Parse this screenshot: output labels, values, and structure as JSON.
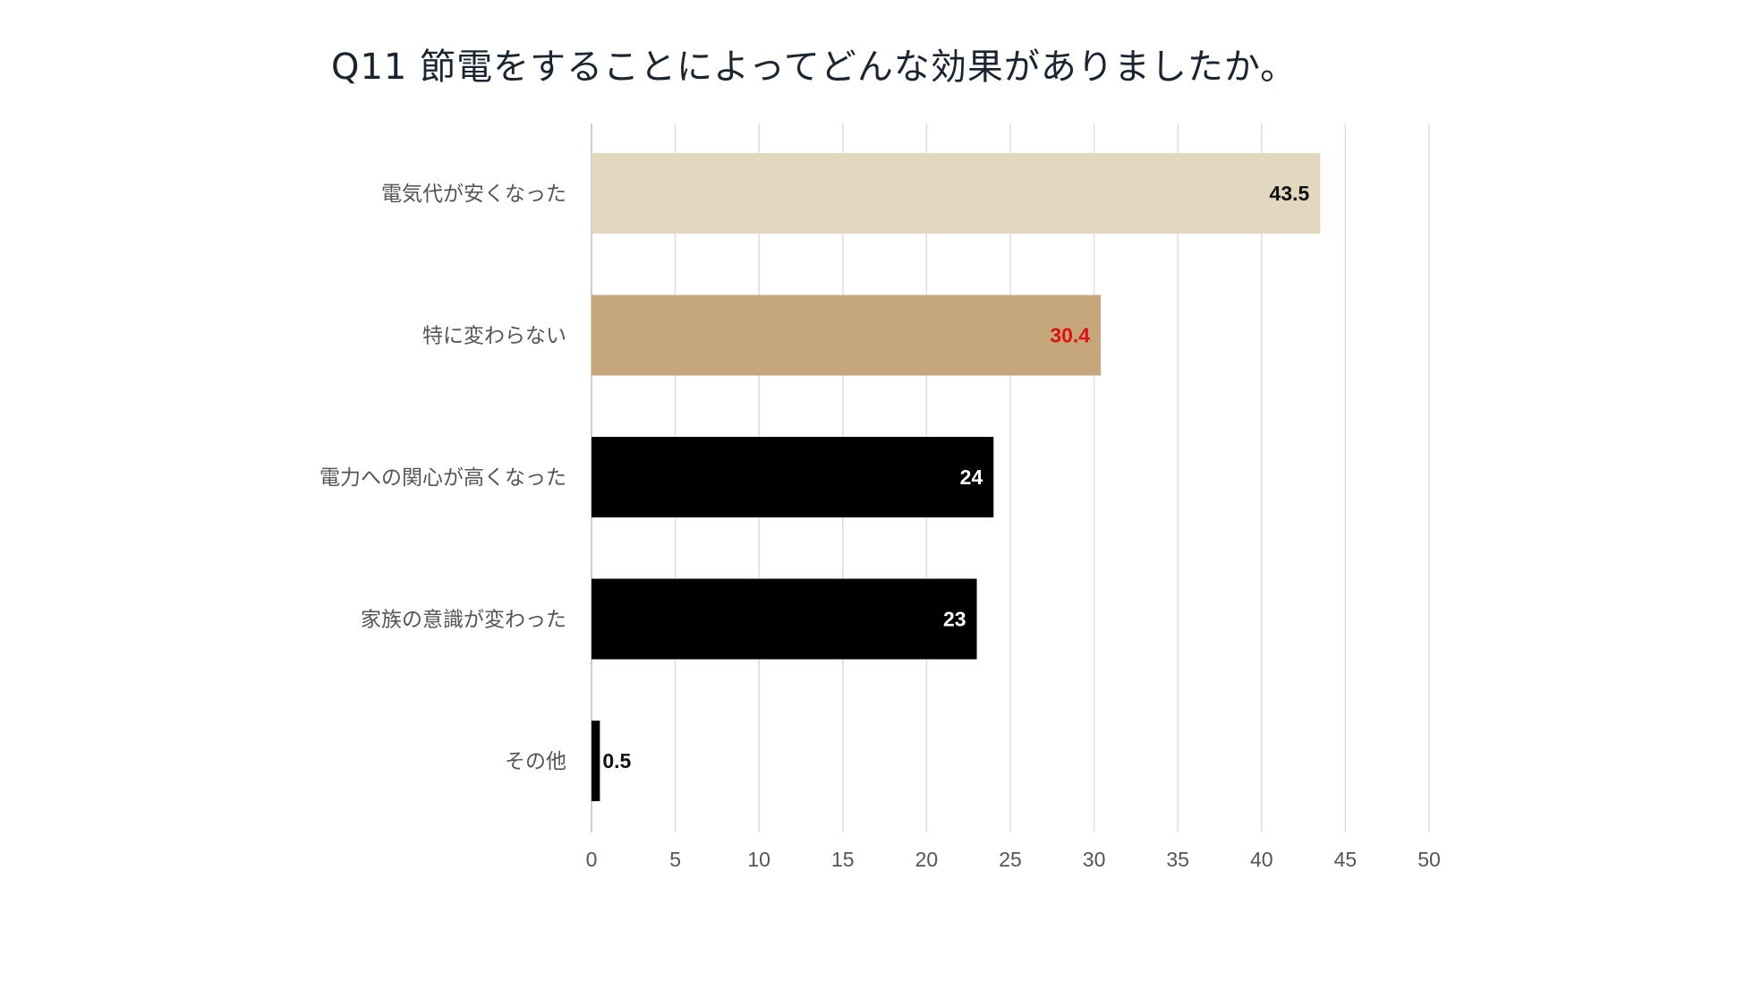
{
  "chart_data": {
    "type": "bar",
    "orientation": "horizontal",
    "title": "Q11 節電をすることによってどんな効果がありましたか。",
    "categories": [
      "電気代が安くなった",
      "特に変わらない",
      "電力への関心が高くなった",
      "家族の意識が変わった",
      "その他"
    ],
    "values": [
      43.5,
      30.4,
      24,
      23,
      0.5
    ],
    "value_labels": [
      "43.5",
      "30.4",
      "24",
      "23",
      "0.5"
    ],
    "bar_colors": [
      "#e3d7c0",
      "#c5a77b",
      "#000000",
      "#000000",
      "#000000"
    ],
    "label_colors": [
      "#111111",
      "#e01010",
      "#ffffff",
      "#ffffff",
      "#111111"
    ],
    "xlim": [
      0,
      50
    ],
    "xticks": [
      0,
      5,
      10,
      15,
      20,
      25,
      30,
      35,
      40,
      45,
      50
    ],
    "grid": "vertical",
    "legend": "none",
    "xlabel": "",
    "ylabel": ""
  }
}
